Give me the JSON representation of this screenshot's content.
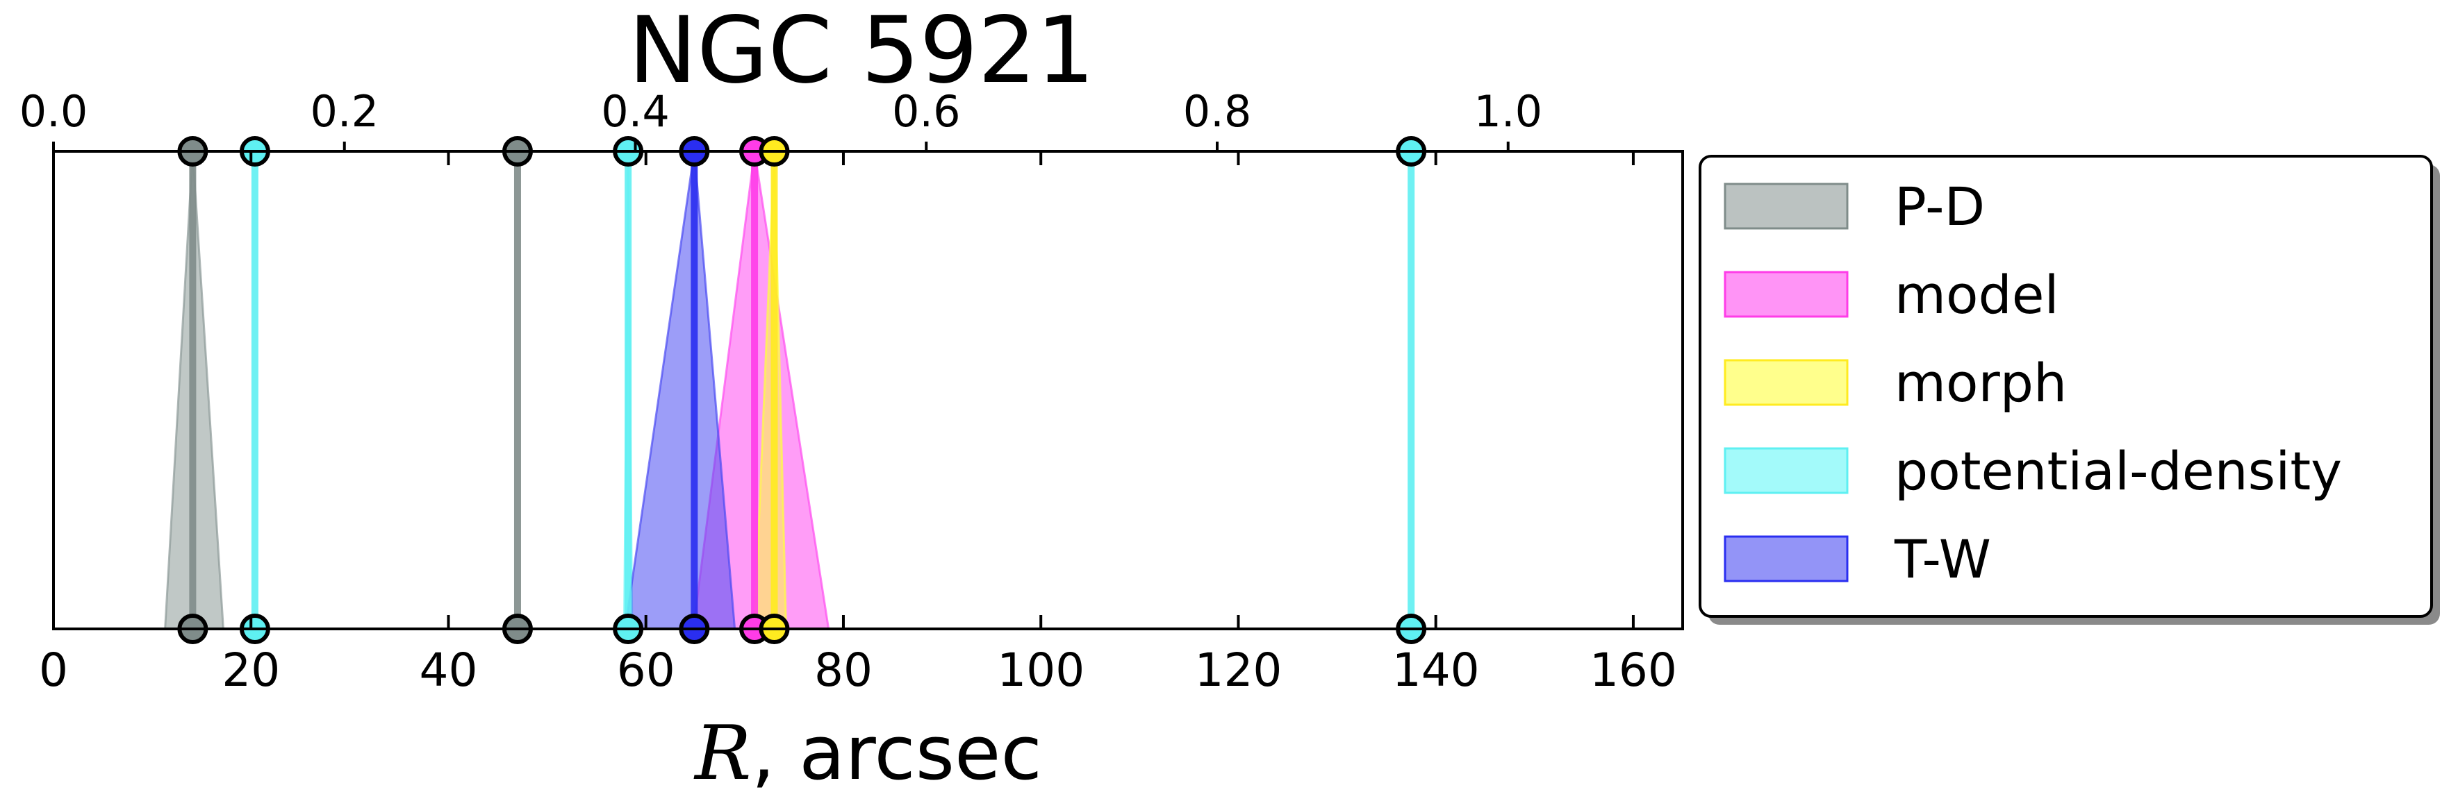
{
  "chart_data": {
    "type": "line",
    "title": "NGC 5921",
    "xlabel_symbol": "R",
    "xlabel_rest": ", arcsec",
    "xlim": [
      0,
      165
    ],
    "xticks": [
      0,
      20,
      40,
      60,
      80,
      100,
      120,
      140,
      160
    ],
    "top_axis": {
      "xlim": [
        0,
        1.12
      ],
      "ticks": [
        0.0,
        0.2,
        0.4,
        0.6,
        0.8,
        1.0
      ],
      "tick_labels": [
        "0.0",
        "0.2",
        "0.4",
        "0.6",
        "0.8",
        "1.0"
      ]
    },
    "legend": {
      "placement": "outside-right"
    },
    "series": [
      {
        "name": "P-D",
        "color": "#7f8c8a",
        "fill": "#8d9a98",
        "values": [
          {
            "r": 14.1,
            "lo": 11.3,
            "hi": 17.2
          },
          {
            "r": 47.0,
            "lo": 47.0,
            "hi": 47.0
          }
        ]
      },
      {
        "name": "model",
        "color": "#ff3ce8",
        "fill": "#ff4df0",
        "values": [
          {
            "r": 71.0,
            "lo": 64.8,
            "hi": 78.5
          }
        ]
      },
      {
        "name": "morph",
        "color": "#ffeb20",
        "fill": "#ffff40",
        "values": [
          {
            "r": 73.0,
            "lo": 71.0,
            "hi": 74.2
          }
        ]
      },
      {
        "name": "potential-density",
        "color": "#5ff0f2",
        "fill": "#66f6f6",
        "values": [
          {
            "r": 20.4,
            "lo": 20.4,
            "hi": 20.4
          },
          {
            "r": 58.2,
            "lo": 57.8,
            "hi": 58.6
          },
          {
            "r": 137.5,
            "lo": 137.5,
            "hi": 137.5
          }
        ]
      },
      {
        "name": "T-W",
        "color": "#2a2ef0",
        "fill": "#4b4cf2",
        "values": [
          {
            "r": 64.9,
            "lo": 57.9,
            "hi": 69.0
          }
        ]
      }
    ]
  }
}
